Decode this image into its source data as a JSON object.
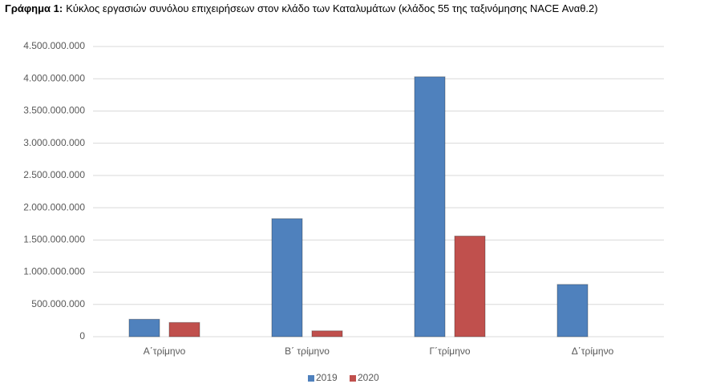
{
  "chart_data": {
    "type": "bar",
    "title_label": "Γράφημα 1:",
    "title": "Κύκλος εργασιών συνόλου επιχειρήσεων στον κλάδο των Καταλυμάτων (κλάδος 55 της ταξινόμησης NACE Αναθ.2)",
    "categories": [
      "Α΄τρίμηνο",
      "Β΄ τρίμηνο",
      "Γ΄τρίμηνο",
      "Δ΄τρίμηνο"
    ],
    "series": [
      {
        "name": "2019",
        "color": "#4f81bd",
        "values": [
          270000000,
          1830000000,
          4030000000,
          810000000
        ]
      },
      {
        "name": "2020",
        "color": "#c0504d",
        "values": [
          220000000,
          90000000,
          1560000000,
          null
        ]
      }
    ],
    "ylim": [
      0,
      4500000000
    ],
    "yticks": [
      0,
      {
        "value": 500000000,
        "label": "500.000.000"
      },
      {
        "value": 1000000000,
        "label": "1.000.000.000"
      },
      {
        "value": 1500000000,
        "label": "1.500.000.000"
      },
      {
        "value": 2000000000,
        "label": "2.000.000.000"
      },
      {
        "value": 2500000000,
        "label": "2.500.000.000"
      },
      {
        "value": 3000000000,
        "label": "3.000.000.000"
      },
      {
        "value": 3500000000,
        "label": "3.500.000.000"
      },
      {
        "value": 4000000000,
        "label": "4.000.000.000"
      },
      {
        "value": 4500000000,
        "label": "4.500.000.000"
      }
    ],
    "grid": true,
    "legend": "bottom"
  }
}
